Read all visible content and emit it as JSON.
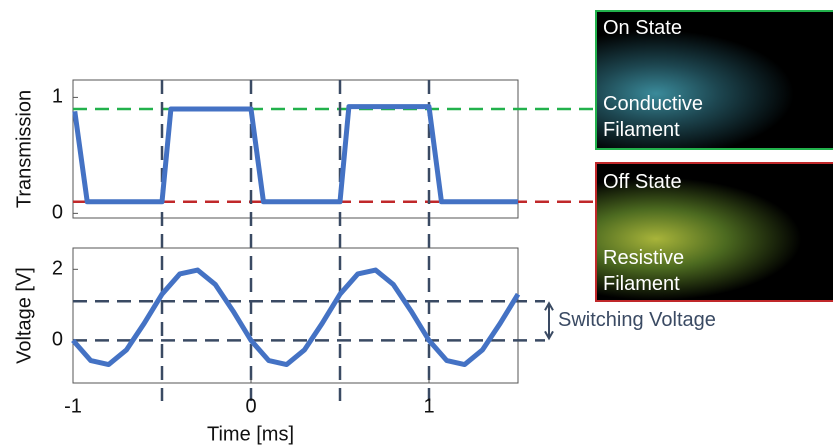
{
  "chart_data": [
    {
      "type": "line",
      "ylabel": "Transmission",
      "x": [
        -0.99,
        -0.92,
        -0.5,
        -0.45,
        0,
        0.07,
        0.5,
        0.55,
        1.0,
        1.07,
        1.5
      ],
      "values": [
        0.88,
        0.1,
        0.1,
        0.9,
        0.9,
        0.1,
        0.1,
        0.92,
        0.92,
        0.1,
        0.1
      ],
      "color": "#4472c4",
      "xlim": [
        -1,
        1.5
      ],
      "ylim": [
        -0.04,
        1.15
      ],
      "yticks": [
        0,
        1
      ],
      "hlines": [
        {
          "value": 0.9,
          "color": "#22b14c"
        },
        {
          "value": 0.1,
          "color": "#c0282a"
        }
      ],
      "vlines": [
        -0.5,
        0,
        0.5,
        1.0
      ]
    },
    {
      "type": "line",
      "ylabel": "Voltage [V]",
      "xlabel": "Time [ms]",
      "x": [
        -1,
        -0.9,
        -0.8,
        -0.7,
        -0.6,
        -0.5,
        -0.4,
        -0.3,
        -0.2,
        -0.1,
        0,
        0.1,
        0.2,
        0.3,
        0.4,
        0.5,
        0.6,
        0.7,
        0.8,
        0.9,
        1.0,
        1.1,
        1.2,
        1.3,
        1.4,
        1.5
      ],
      "values": [
        0.0,
        -0.57,
        -0.68,
        -0.27,
        0.48,
        1.3,
        1.87,
        1.98,
        1.57,
        0.82,
        0.0,
        -0.57,
        -0.68,
        -0.27,
        0.48,
        1.3,
        1.87,
        1.98,
        1.57,
        0.82,
        0.0,
        -0.57,
        -0.68,
        -0.27,
        0.48,
        1.3
      ],
      "color": "#4472c4",
      "xlim": [
        -1,
        1.5
      ],
      "ylim": [
        -1.2,
        2.6
      ],
      "xticks": [
        -1,
        0,
        1
      ],
      "yticks": [
        0,
        2
      ],
      "hlines": [
        {
          "value": 1.1,
          "color": "#3a4a63"
        },
        {
          "value": 0,
          "color": "#3a4a63"
        }
      ],
      "annotation": "Switching Voltage"
    }
  ],
  "insets": [
    {
      "title": "On State",
      "label_lines": [
        "Conductive",
        "Filament"
      ]
    },
    {
      "title": "Off State",
      "label_lines": [
        "Resistive",
        "Filament"
      ]
    }
  ]
}
